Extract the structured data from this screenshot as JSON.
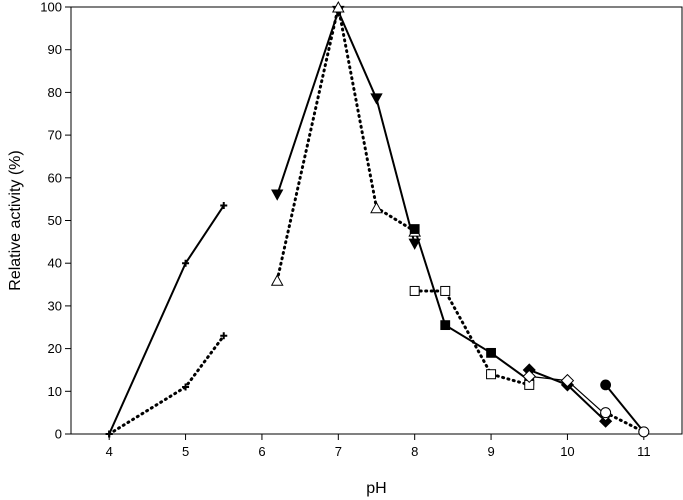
{
  "chart_data": {
    "type": "line",
    "title": "",
    "xlabel": "pH",
    "ylabel": "Relative activity (%)",
    "xlim": [
      3.5,
      11.5
    ],
    "ylim": [
      0,
      100
    ],
    "xticks": [
      4,
      5,
      6,
      7,
      8,
      9,
      10,
      11
    ],
    "yticks": [
      0,
      10,
      20,
      30,
      40,
      50,
      60,
      70,
      80,
      90,
      100
    ],
    "grid": false,
    "legend": "none",
    "series": [
      {
        "marker": "plus",
        "line": "solid",
        "x": [
          4,
          5,
          5.5
        ],
        "y": [
          0,
          40,
          53.5
        ]
      },
      {
        "marker": "plus",
        "line": "dotted",
        "x": [
          4,
          5,
          5.5
        ],
        "y": [
          0,
          11,
          23
        ]
      },
      {
        "marker": "triangle-down-filled",
        "line": "solid",
        "x": [
          6.2,
          7,
          7.5,
          8
        ],
        "y": [
          56,
          99,
          78.5,
          44.5
        ]
      },
      {
        "marker": "triangle-up-open",
        "line": "dotted",
        "x": [
          6.2,
          7,
          7.5,
          8
        ],
        "y": [
          36,
          100,
          53,
          47.5
        ]
      },
      {
        "marker": "square-filled",
        "line": "solid",
        "x": [
          8,
          8.4,
          9,
          9.5
        ],
        "y": [
          48,
          25.5,
          19,
          12.5
        ]
      },
      {
        "marker": "square-open",
        "line": "dotted",
        "x": [
          8,
          8.4,
          9,
          9.5
        ],
        "y": [
          33.5,
          33.5,
          14,
          11.5
        ]
      },
      {
        "marker": "diamond-filled",
        "line": "solid",
        "x": [
          9.5,
          10,
          10.5
        ],
        "y": [
          15,
          11.5,
          3
        ]
      },
      {
        "marker": "diamond-open",
        "line": "solid",
        "x": [
          9.5,
          10,
          10.5
        ],
        "y": [
          13.5,
          12.5,
          4.5
        ]
      },
      {
        "marker": "circle-filled",
        "line": "solid",
        "x": [
          10.5,
          11
        ],
        "y": [
          11.5,
          0.5
        ]
      },
      {
        "marker": "circle-open",
        "line": "dotted",
        "x": [
          10.5,
          11
        ],
        "y": [
          5,
          0.5
        ]
      }
    ]
  }
}
